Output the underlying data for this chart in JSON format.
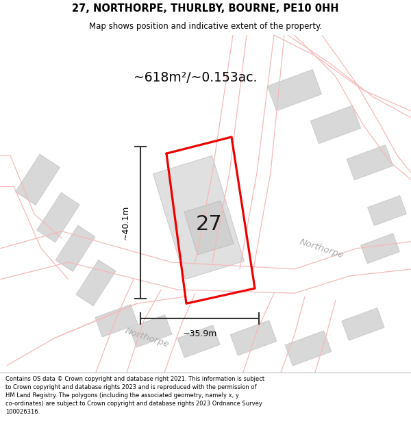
{
  "title_line1": "27, NORTHORPE, THURLBY, BOURNE, PE10 0HH",
  "title_line2": "Map shows position and indicative extent of the property.",
  "area_label": "~618m²/~0.153ac.",
  "property_number": "27",
  "dim_vertical": "~40.1m",
  "dim_horizontal": "~35.9m",
  "road_label": "Northorpe",
  "disclaimer": "Contains OS data © Crown copyright and database right 2021. This information is subject\nto Crown copyright and database rights 2023 and is reproduced with the permission of\nHM Land Registry. The polygons (including the associated geometry, namely x, y\nco-ordinates) are subject to Crown copyright and database rights 2023 Ordnance Survey\n100026316.",
  "bg_color": "#ffffff",
  "road_line_color": "#f5b8b8",
  "building_color": "#d8d8d8",
  "building_edge": "#cccccc",
  "property_color": "#ee0000",
  "dim_color": "#333333",
  "road_label_color": "#aaaaaa",
  "footer_bg": "#ffffff"
}
